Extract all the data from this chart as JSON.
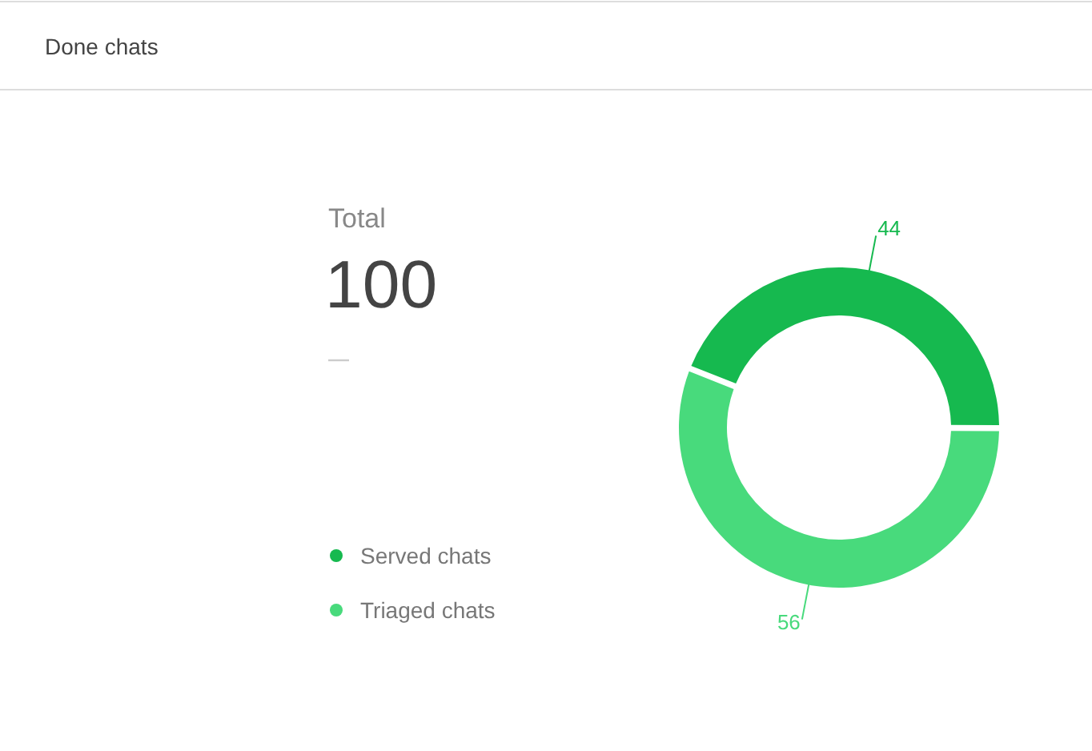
{
  "chart_data": {
    "type": "donut",
    "title": "Done chats",
    "categories": [
      "Served chats",
      "Triaged chats"
    ],
    "values": [
      44,
      56
    ],
    "colors": [
      "#16b94f",
      "#48da7c"
    ],
    "data_labels": true,
    "legend": "left",
    "annotations": [
      "Total",
      "100"
    ]
  }
}
